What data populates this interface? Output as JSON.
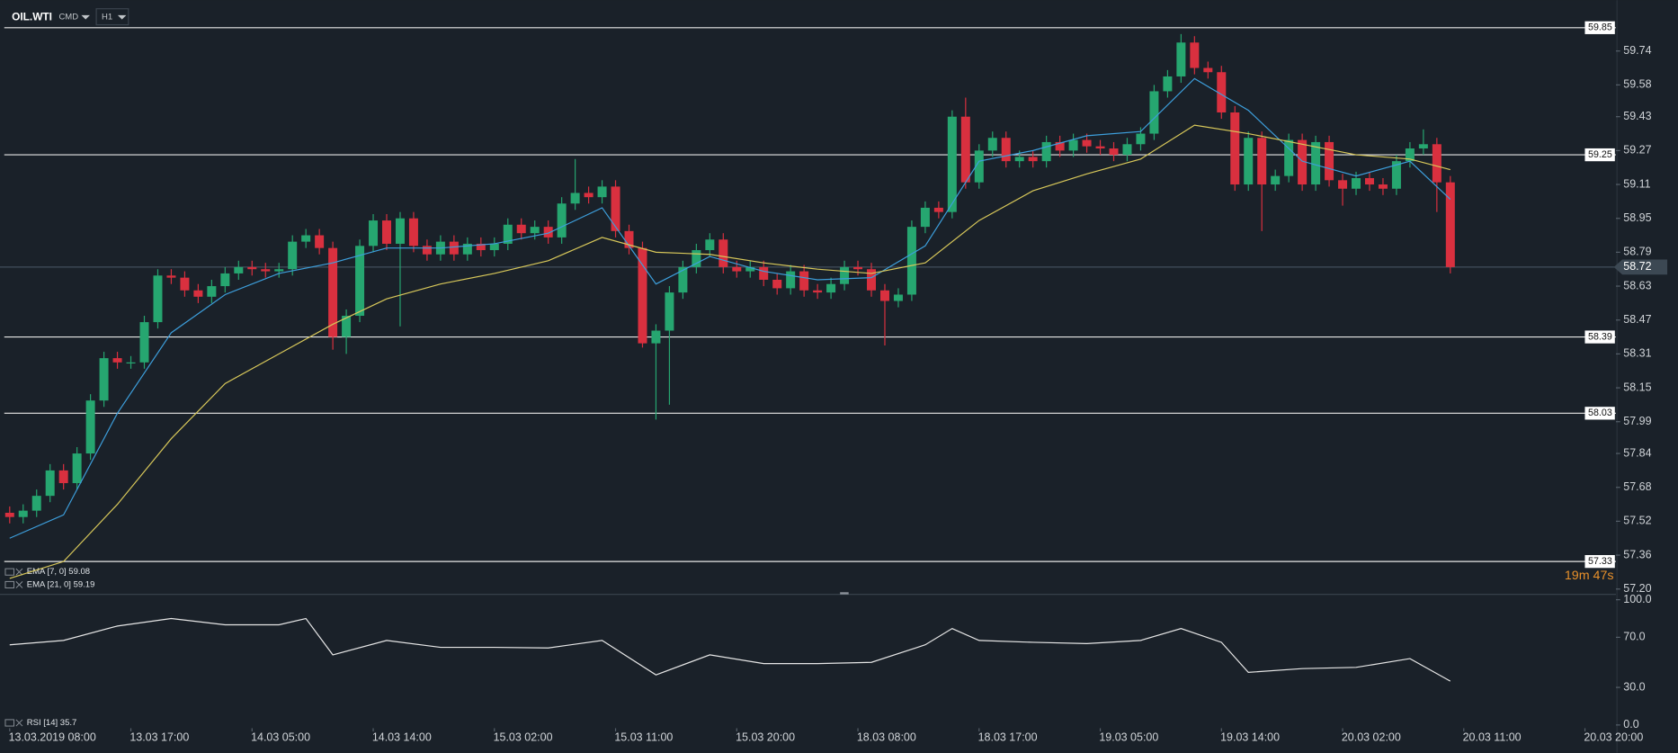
{
  "toolbar": {
    "symbol": "OIL.WTI",
    "asset_class": "CMD",
    "timeframe": "H1"
  },
  "chart_data": [
    {
      "type": "candlestick",
      "open": [
        57.56,
        57.54,
        57.57,
        57.64,
        57.76,
        57.7,
        57.84,
        58.09,
        58.29,
        58.27,
        58.27,
        58.46,
        58.68,
        58.67,
        58.61,
        58.58,
        58.63,
        58.69,
        58.72,
        58.71,
        58.7,
        58.71,
        58.84,
        58.87,
        58.81,
        58.39,
        58.49,
        58.82,
        58.94,
        58.83,
        58.95,
        58.82,
        58.78,
        58.84,
        58.78,
        58.83,
        58.8,
        58.83,
        58.92,
        58.88,
        58.91,
        58.86,
        59.02,
        59.07,
        59.05,
        59.1,
        58.89,
        58.81,
        58.36,
        58.42,
        58.6,
        58.72,
        58.8,
        58.85,
        58.72,
        58.7,
        58.72,
        58.66,
        58.62,
        58.7,
        58.61,
        58.6,
        58.64,
        58.72,
        58.71,
        58.61,
        58.56,
        58.59,
        58.91,
        59.0,
        58.98,
        59.43,
        59.12,
        59.27,
        59.33,
        59.22,
        59.24,
        59.22,
        59.31,
        59.27,
        59.32,
        59.29,
        59.28,
        59.25,
        59.3,
        59.35,
        59.55,
        59.62,
        59.78,
        59.66,
        59.64,
        59.45,
        59.11,
        59.33,
        59.11,
        59.15,
        59.32,
        59.11,
        59.31,
        59.13,
        59.09,
        59.14,
        59.11,
        59.09,
        59.22,
        59.28,
        59.3,
        59.12
      ],
      "high": [
        57.59,
        57.6,
        57.67,
        57.79,
        57.79,
        57.87,
        58.12,
        58.32,
        58.32,
        58.3,
        58.49,
        58.71,
        58.71,
        58.7,
        58.64,
        58.66,
        58.72,
        58.75,
        58.75,
        58.74,
        58.74,
        58.87,
        58.9,
        58.9,
        58.84,
        58.52,
        58.85,
        58.97,
        58.97,
        58.98,
        58.98,
        58.85,
        58.87,
        58.87,
        58.86,
        58.86,
        58.86,
        58.95,
        58.95,
        58.94,
        58.94,
        59.05,
        59.23,
        59.1,
        59.13,
        59.13,
        58.92,
        58.84,
        58.45,
        58.63,
        58.75,
        58.83,
        58.88,
        58.88,
        58.75,
        58.75,
        58.75,
        58.69,
        58.73,
        58.73,
        58.64,
        58.67,
        58.75,
        58.75,
        58.74,
        58.64,
        58.62,
        58.94,
        59.03,
        59.03,
        59.46,
        59.52,
        59.3,
        59.36,
        59.36,
        59.27,
        59.27,
        59.34,
        59.34,
        59.35,
        59.35,
        59.32,
        59.31,
        59.33,
        59.38,
        59.58,
        59.65,
        59.82,
        59.81,
        59.69,
        59.67,
        59.48,
        59.36,
        59.36,
        59.18,
        59.35,
        59.35,
        59.34,
        59.34,
        59.16,
        59.17,
        59.17,
        59.14,
        59.25,
        59.31,
        59.37,
        59.33,
        59.15
      ],
      "low": [
        57.51,
        57.51,
        57.54,
        57.61,
        57.67,
        57.67,
        57.81,
        58.06,
        58.24,
        58.24,
        58.24,
        58.43,
        58.64,
        58.58,
        58.55,
        58.55,
        58.6,
        58.66,
        58.68,
        58.67,
        58.67,
        58.68,
        58.81,
        58.78,
        58.33,
        58.31,
        58.46,
        58.79,
        58.8,
        58.44,
        58.79,
        58.75,
        58.75,
        58.75,
        58.75,
        58.77,
        58.77,
        58.8,
        58.85,
        58.85,
        58.83,
        58.83,
        58.99,
        59.02,
        59.02,
        58.86,
        58.78,
        58.34,
        58.0,
        58.07,
        58.57,
        58.69,
        58.77,
        58.69,
        58.67,
        58.67,
        58.63,
        58.59,
        58.59,
        58.58,
        58.57,
        58.57,
        58.61,
        58.68,
        58.58,
        58.35,
        58.53,
        58.56,
        58.88,
        58.95,
        58.95,
        59.09,
        59.09,
        59.24,
        59.19,
        59.19,
        59.19,
        59.19,
        59.24,
        59.24,
        59.26,
        59.25,
        59.22,
        59.22,
        59.27,
        59.32,
        59.52,
        59.59,
        59.63,
        59.61,
        59.42,
        59.08,
        59.08,
        58.89,
        59.08,
        59.12,
        59.08,
        59.08,
        59.1,
        59.01,
        59.06,
        59.08,
        59.06,
        59.06,
        59.19,
        59.25,
        58.98,
        58.69
      ],
      "close": [
        57.54,
        57.57,
        57.64,
        57.76,
        57.7,
        57.84,
        58.09,
        58.29,
        58.27,
        58.27,
        58.46,
        58.68,
        58.67,
        58.61,
        58.58,
        58.63,
        58.69,
        58.72,
        58.71,
        58.7,
        58.71,
        58.84,
        58.87,
        58.81,
        58.39,
        58.49,
        58.82,
        58.94,
        58.83,
        58.95,
        58.82,
        58.78,
        58.84,
        58.78,
        58.83,
        58.8,
        58.83,
        58.92,
        58.88,
        58.91,
        58.86,
        59.02,
        59.07,
        59.05,
        59.1,
        58.89,
        58.81,
        58.36,
        58.42,
        58.6,
        58.72,
        58.8,
        58.85,
        58.72,
        58.7,
        58.72,
        58.66,
        58.62,
        58.7,
        58.61,
        58.6,
        58.64,
        58.72,
        58.71,
        58.61,
        58.56,
        58.59,
        58.91,
        59.0,
        58.98,
        59.43,
        59.12,
        59.27,
        59.33,
        59.22,
        59.24,
        59.22,
        59.31,
        59.27,
        59.32,
        59.29,
        59.28,
        59.25,
        59.3,
        59.35,
        59.55,
        59.62,
        59.78,
        59.66,
        59.64,
        59.45,
        59.11,
        59.33,
        59.11,
        59.15,
        59.32,
        59.11,
        59.31,
        59.13,
        59.09,
        59.14,
        59.11,
        59.09,
        59.22,
        59.28,
        59.3,
        59.12,
        58.72
      ],
      "up_color": "#26a670",
      "down_color": "#d9303f",
      "xlim": [
        -0.72,
        119.3
      ],
      "xticks": [
        {
          "value": 0,
          "label": "13.03.2019  08:00"
        },
        {
          "value": 9,
          "label": "13.03  17:00"
        },
        {
          "value": 18,
          "label": "14.03  05:00"
        },
        {
          "value": 27,
          "label": "14.03  14:00"
        },
        {
          "value": 36,
          "label": "15.03  02:00"
        },
        {
          "value": 45,
          "label": "15.03  11:00"
        },
        {
          "value": 54,
          "label": "15.03  20:00"
        },
        {
          "value": 63,
          "label": "18.03  08:00"
        },
        {
          "value": 72,
          "label": "18.03  17:00"
        },
        {
          "value": 81,
          "label": "19.03  05:00"
        },
        {
          "value": 90,
          "label": "19.03  14:00"
        },
        {
          "value": 99,
          "label": "20.03  02:00"
        },
        {
          "value": 108,
          "label": "20.03  11:00"
        },
        {
          "value": 117,
          "label": "20.03  20:00"
        }
      ],
      "ylim": [
        57.19,
        59.98
      ],
      "yticks": [
        59.74,
        59.58,
        59.43,
        59.27,
        59.11,
        58.95,
        58.79,
        58.63,
        58.47,
        58.31,
        58.15,
        57.99,
        57.84,
        57.68,
        57.52,
        57.36,
        {
          "value": 57.2,
          "label": "57.20"
        }
      ],
      "levels": [
        59.85,
        59.25,
        58.39,
        58.03,
        57.33
      ],
      "last_price": 58.72,
      "series": [
        {
          "name": "EMA [7, 0] 59.08",
          "color": "#3d9fdc",
          "x": [
            0,
            4,
            8,
            12,
            16,
            20,
            24,
            28,
            32,
            36,
            40,
            44,
            48,
            52,
            56,
            60,
            64,
            68,
            72,
            76,
            80,
            84,
            88,
            92,
            96,
            100,
            104,
            107
          ],
          "values": [
            57.44,
            57.55,
            58.03,
            58.41,
            58.59,
            58.69,
            58.74,
            58.81,
            58.81,
            58.83,
            58.88,
            59.0,
            58.64,
            58.77,
            58.7,
            58.66,
            58.67,
            58.82,
            59.22,
            59.27,
            59.34,
            59.36,
            59.61,
            59.46,
            59.22,
            59.15,
            59.22,
            59.04
          ]
        },
        {
          "name": "EMA [21, 0] 59.19",
          "color": "#d8c85a",
          "x": [
            0,
            4,
            8,
            12,
            16,
            20,
            24,
            28,
            32,
            36,
            40,
            44,
            48,
            52,
            56,
            60,
            64,
            68,
            72,
            76,
            80,
            84,
            88,
            92,
            96,
            100,
            104,
            107
          ],
          "values": [
            57.25,
            57.33,
            57.6,
            57.91,
            58.17,
            58.31,
            58.45,
            58.57,
            58.64,
            58.69,
            58.75,
            58.86,
            58.79,
            58.78,
            58.74,
            58.71,
            58.69,
            58.74,
            58.94,
            59.08,
            59.16,
            59.23,
            59.39,
            59.35,
            59.3,
            59.25,
            59.23,
            59.18
          ]
        }
      ],
      "countdown": "19m 47s"
    },
    {
      "type": "line",
      "series": [
        {
          "name": "RSI [14] 35.7",
          "color": "#e6e6e6",
          "x": [
            0,
            4,
            8,
            12,
            16,
            20,
            22,
            24,
            28,
            32,
            36,
            40,
            44,
            48,
            52,
            56,
            60,
            64,
            68,
            70,
            72,
            76,
            80,
            84,
            87,
            90,
            92,
            96,
            100,
            104,
            107
          ],
          "values": [
            64,
            67.5,
            79,
            85,
            80,
            80,
            85,
            56,
            67.5,
            62,
            62,
            61.5,
            67.5,
            40,
            56,
            49,
            49,
            50,
            64,
            77,
            67.5,
            66,
            65,
            67.5,
            77,
            66,
            42,
            45,
            46,
            53,
            35
          ]
        }
      ],
      "xlim": [
        -0.72,
        119.3
      ],
      "ylim": [
        0,
        100
      ],
      "yticks": [
        {
          "value": 100,
          "label": "100.0"
        },
        {
          "value": 70,
          "label": "70.0"
        },
        {
          "value": 30,
          "label": "30.0"
        },
        {
          "value": 0,
          "label": "0.0"
        }
      ]
    }
  ]
}
